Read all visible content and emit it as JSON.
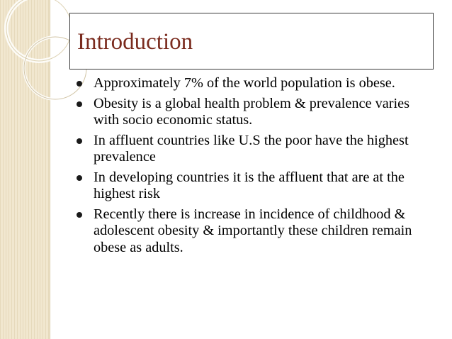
{
  "slide": {
    "title": "Introduction",
    "accent_title_color": "#7a2b1e",
    "bullets": [
      "Approximately 7% of the world population is obese.",
      "Obesity is a global health problem & prevalence varies with socio economic status.",
      "In affluent countries like U.S the poor have the highest prevalence",
      "In developing countries it is the affluent that are at the highest risk",
      "Recently there is increase in incidence of childhood & adolescent obesity & importantly these children remain obese as adults."
    ]
  }
}
